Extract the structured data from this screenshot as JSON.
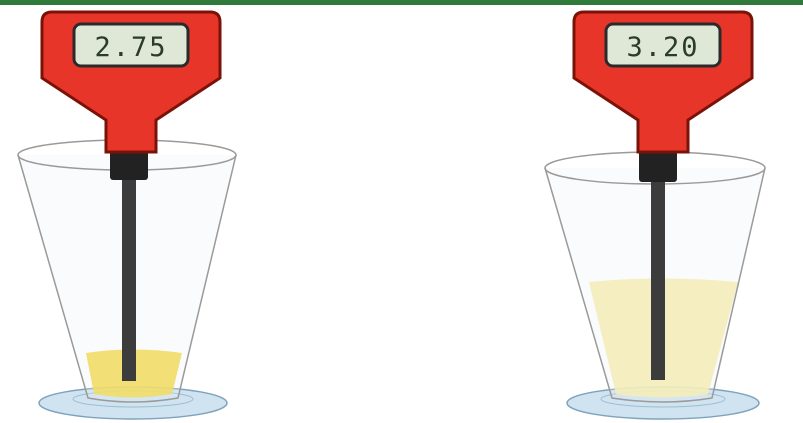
{
  "meters": [
    {
      "reading": "2.75",
      "body_color": "#e8352a",
      "solution_color": "#f5d63a",
      "solution_fill_level": 0.17
    },
    {
      "reading": "3.20",
      "body_color": "#e8352a",
      "solution_color": "#f7eca6",
      "solution_fill_level": 0.47
    }
  ],
  "colors": {
    "display_background": "#dfe8d6",
    "display_digits": "#2b3b2b",
    "probe": "#3c3c3c",
    "glass_outline": "#9a9a9a",
    "saucer": "#cfe3f0",
    "top_banner": "#2f7a3a"
  }
}
